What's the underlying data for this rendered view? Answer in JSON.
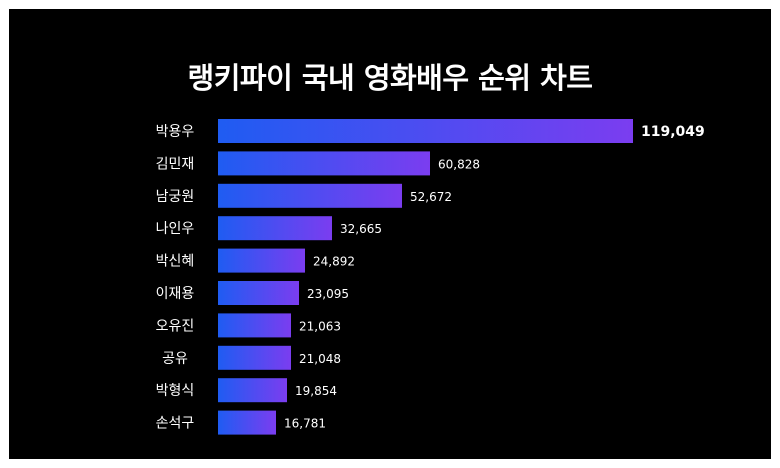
{
  "chart_data": {
    "type": "bar",
    "orientation": "horizontal",
    "title": "랭키파이 국내 영화배우 순위 차트",
    "categories": [
      "박용우",
      "김민재",
      "남궁원",
      "나인우",
      "박신혜",
      "이재용",
      "오유진",
      "공유",
      "박형식",
      "손석구"
    ],
    "values": [
      119049,
      60828,
      52672,
      32665,
      24892,
      23095,
      21063,
      21048,
      19854,
      16781
    ],
    "value_labels": [
      "119,049",
      "60,828",
      "52,672",
      "32,665",
      "24,892",
      "23,095",
      "21,063",
      "21,048",
      "19,854",
      "16,781"
    ],
    "xlim": [
      0,
      119049
    ],
    "grid": false,
    "legend": "none",
    "colors": {
      "background": "#000000",
      "bar_start": "#1f5cf2",
      "bar_end": "#7b3df0",
      "text": "#ffffff",
      "frame": "#ffffff"
    }
  }
}
